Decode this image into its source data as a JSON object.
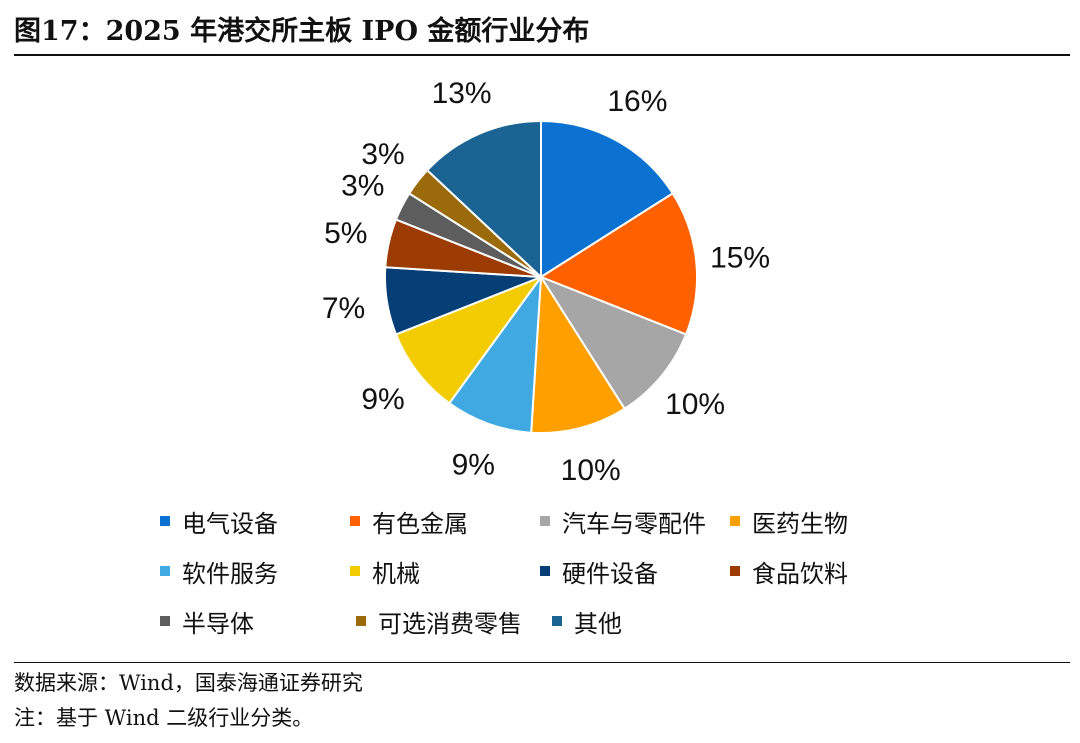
{
  "header": {
    "title": "图17：2025 年港交所主板 IPO 金额行业分布"
  },
  "chart_data": {
    "type": "pie",
    "title": "2025 年港交所主板 IPO 金额行业分布",
    "start": "12 o'clock, clockwise",
    "slices": [
      {
        "name": "电气设备",
        "value": 16,
        "label": "16%",
        "color": "#0b72d1"
      },
      {
        "name": "有色金属",
        "value": 15,
        "label": "15%",
        "color": "#ff6000"
      },
      {
        "name": "汽车与零配件",
        "value": 10,
        "label": "10%",
        "color": "#a6a6a6"
      },
      {
        "name": "医药生物",
        "value": 10,
        "label": "10%",
        "color": "#ff9f00"
      },
      {
        "name": "软件服务",
        "value": 9,
        "label": "9%",
        "color": "#41a9e1"
      },
      {
        "name": "机械",
        "value": 9,
        "label": "9%",
        "color": "#f2cc00"
      },
      {
        "name": "硬件设备",
        "value": 7,
        "label": "7%",
        "color": "#063f75"
      },
      {
        "name": "食品饮料",
        "value": 5,
        "label": "5%",
        "color": "#9c3b04"
      },
      {
        "name": "半导体",
        "value": 3,
        "label": "3%",
        "color": "#5d5d5d"
      },
      {
        "name": "可选消费零售",
        "value": 3,
        "label": "3%",
        "color": "#9b6a0b"
      },
      {
        "name": "其他",
        "value": 13,
        "label": "13%",
        "color": "#1a6393"
      }
    ],
    "legend_position": "bottom"
  },
  "footer": {
    "source": "数据来源：Wind，国泰海通证券研究",
    "note": "注：基于 Wind 二级行业分类。"
  }
}
